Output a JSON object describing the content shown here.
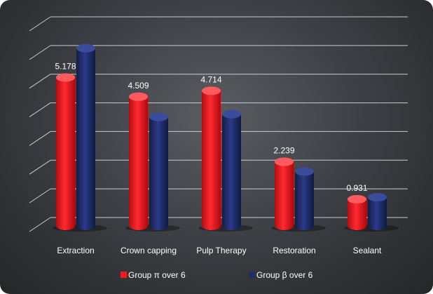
{
  "chart_data": {
    "type": "bar",
    "categories": [
      "Extraction",
      "Crown capping",
      "Pulp Therapy",
      "Restoration",
      "Sealant"
    ],
    "series": [
      {
        "name": "Group π  over 6",
        "color": "#ee1c23",
        "values": [
          5.178,
          4.509,
          4.714,
          2.239,
          0.931
        ]
      },
      {
        "name": "Group β over 6",
        "color": "#1f2d6b",
        "values": [
          6.2,
          3.8,
          3.9,
          1.9,
          1.0
        ]
      }
    ],
    "data_labels": [
      "5.178",
      "4.509",
      "4.714",
      "2.239",
      "0.931"
    ],
    "ylim": [
      0,
      7
    ],
    "grid": true,
    "style": "3d-cylinder",
    "legend_position": "bottom"
  }
}
